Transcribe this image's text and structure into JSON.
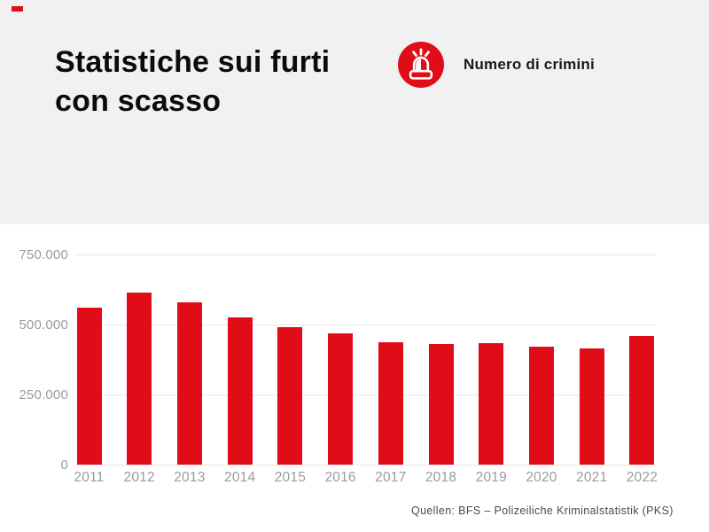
{
  "header": {
    "background": "#f1f1f2",
    "title_line1": "Statistiche sui furti",
    "title_line2": "con scasso",
    "legend": {
      "icon": "siren-icon",
      "icon_bg": "#e00d18",
      "label": "Numero di crimini"
    }
  },
  "brand": {
    "mark_color": "#e00d18"
  },
  "chart_data": {
    "type": "bar",
    "title": "Statistiche sui furti con scasso",
    "series_name": "Numero di crimini",
    "bar_color": "#e00d18",
    "categories": [
      "2011",
      "2012",
      "2013",
      "2014",
      "2015",
      "2016",
      "2017",
      "2018",
      "2019",
      "2020",
      "2021",
      "2022"
    ],
    "values": [
      560000,
      613000,
      578000,
      526000,
      490000,
      468000,
      437000,
      432000,
      433000,
      421000,
      414000,
      460000
    ],
    "ylim": [
      0,
      750000
    ],
    "yticks": [
      {
        "value": 0,
        "label": "0"
      },
      {
        "value": 250000,
        "label": "250.000"
      },
      {
        "value": 500000,
        "label": "500.000"
      },
      {
        "value": 750000,
        "label": "750.000"
      }
    ],
    "grid": "horizontal",
    "legend_position": "top-right",
    "xlabel": "",
    "ylabel": ""
  },
  "footer": {
    "source": "Quellen: BFS – Polizeiliche Kriminalstatistik (PKS)"
  }
}
